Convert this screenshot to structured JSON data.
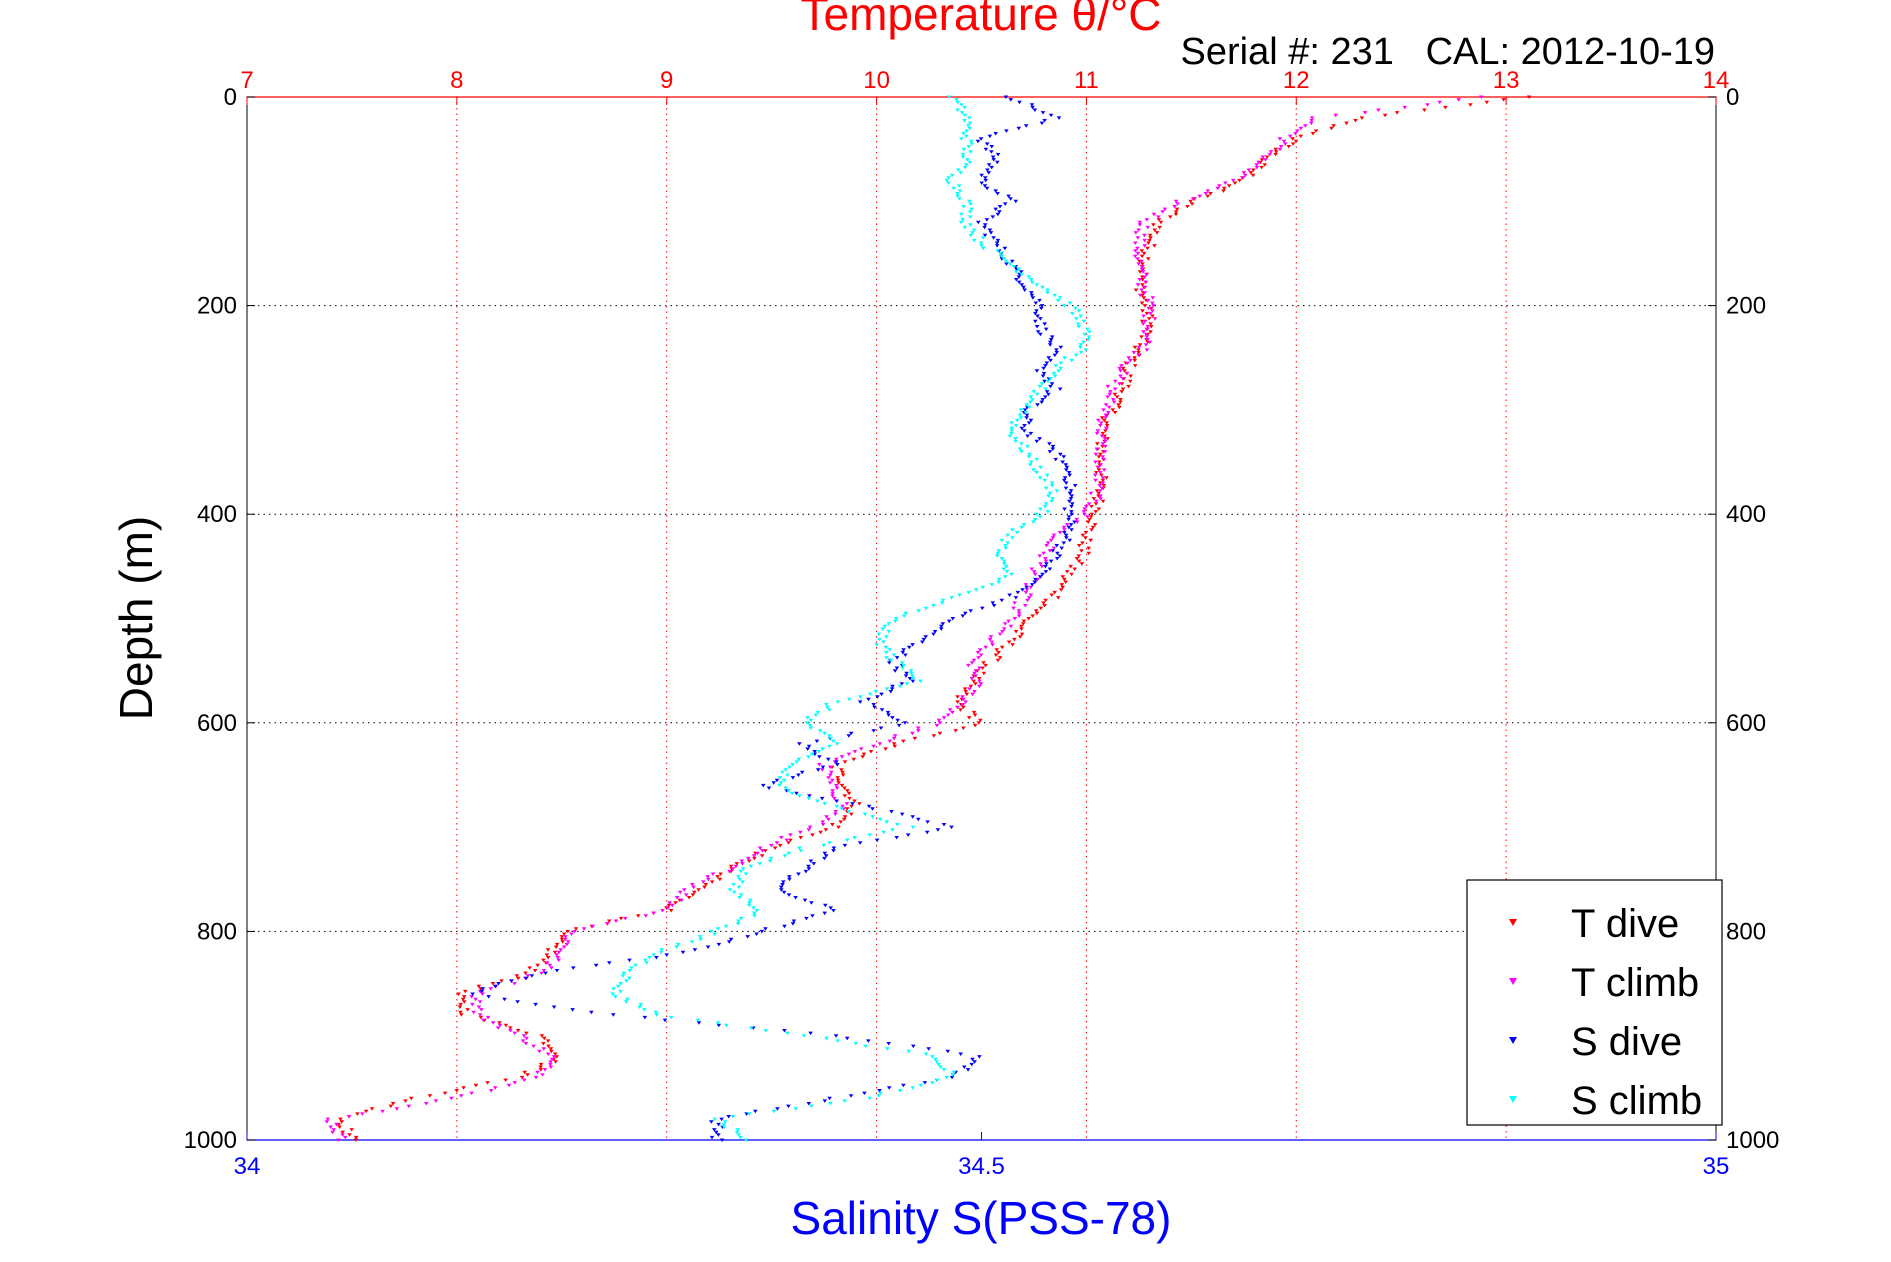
{
  "chart_data": {
    "type": "scatter",
    "title": "Temperature θ/°C",
    "subtitle": "Serial #: 231   CAL: 2012-10-19",
    "xlabel_top": "Temperature θ/°C",
    "xlabel_bottom": "Salinity S(PSS-78)",
    "ylabel": "Depth (m)",
    "temperature_axis": {
      "lim": [
        7,
        14
      ],
      "ticks": [
        "7",
        "8",
        "9",
        "10",
        "11",
        "12",
        "13",
        "14"
      ],
      "color": "#ff0000"
    },
    "salinity_axis": {
      "lim": [
        34,
        35
      ],
      "ticks": [
        "34",
        "34.5",
        "35"
      ],
      "color": "#0000ff"
    },
    "depth_axis": {
      "lim": [
        0,
        1000
      ],
      "reversed": true,
      "ticks": [
        "0",
        "200",
        "400",
        "600",
        "800",
        "1000"
      ]
    },
    "grid": true,
    "legend_position": "bottom-right",
    "series": [
      {
        "name": "T dive",
        "axis": "temperature",
        "color": "#ff0000",
        "depth": [
          0,
          20,
          40,
          60,
          80,
          100,
          120,
          140,
          160,
          180,
          200,
          220,
          240,
          260,
          280,
          300,
          320,
          340,
          360,
          380,
          400,
          420,
          440,
          460,
          480,
          500,
          520,
          540,
          560,
          580,
          600,
          620,
          640,
          660,
          680,
          700,
          720,
          740,
          760,
          780,
          800,
          820,
          840,
          860,
          880,
          900,
          920,
          940,
          960,
          980,
          1000
        ],
        "values": [
          13.1,
          12.3,
          12.0,
          11.85,
          11.75,
          11.5,
          11.35,
          11.3,
          11.28,
          11.26,
          11.28,
          11.3,
          11.25,
          11.2,
          11.18,
          11.12,
          11.08,
          11.07,
          11.07,
          11.06,
          11.05,
          11.0,
          10.98,
          10.9,
          10.85,
          10.72,
          10.65,
          10.55,
          10.45,
          10.38,
          10.5,
          10.1,
          9.8,
          9.85,
          9.9,
          9.8,
          9.5,
          9.3,
          9.15,
          9.0,
          8.5,
          8.45,
          8.35,
          8.0,
          8.05,
          8.4,
          8.5,
          8.3,
          7.8,
          7.45,
          7.5
        ]
      },
      {
        "name": "T climb",
        "axis": "temperature",
        "color": "#ff00ff",
        "depth": [
          0,
          20,
          40,
          60,
          80,
          100,
          120,
          140,
          160,
          180,
          200,
          220,
          240,
          260,
          280,
          300,
          320,
          340,
          360,
          380,
          400,
          420,
          440,
          460,
          480,
          500,
          520,
          540,
          560,
          580,
          600,
          620,
          640,
          660,
          680,
          700,
          720,
          740,
          760,
          780,
          800,
          820,
          840,
          860,
          880,
          900,
          920,
          940,
          960,
          980,
          1000
        ],
        "values": [
          12.9,
          12.1,
          11.95,
          11.85,
          11.7,
          11.45,
          11.28,
          11.25,
          11.25,
          11.27,
          11.3,
          11.3,
          11.28,
          11.18,
          11.12,
          11.1,
          11.07,
          11.07,
          11.06,
          11.05,
          11.0,
          10.85,
          10.8,
          10.75,
          10.7,
          10.65,
          10.55,
          10.45,
          10.48,
          10.42,
          10.3,
          10.0,
          9.75,
          9.78,
          9.85,
          9.7,
          9.45,
          9.3,
          9.1,
          9.0,
          8.55,
          8.5,
          8.4,
          8.1,
          8.1,
          8.3,
          8.45,
          8.4,
          8.0,
          7.4,
          7.45
        ]
      },
      {
        "name": "S dive",
        "axis": "salinity",
        "color": "#0000ff",
        "depth": [
          0,
          20,
          40,
          60,
          80,
          100,
          120,
          140,
          160,
          180,
          200,
          220,
          240,
          260,
          280,
          300,
          320,
          340,
          360,
          380,
          400,
          420,
          440,
          460,
          480,
          500,
          520,
          540,
          560,
          580,
          600,
          620,
          640,
          660,
          680,
          700,
          720,
          740,
          760,
          780,
          800,
          820,
          840,
          860,
          880,
          900,
          920,
          940,
          960,
          980,
          1000
        ],
        "values": [
          34.52,
          34.55,
          34.5,
          34.51,
          34.5,
          34.52,
          34.5,
          34.51,
          34.52,
          34.53,
          34.54,
          34.54,
          34.55,
          34.54,
          34.55,
          34.53,
          34.53,
          34.55,
          34.56,
          34.56,
          34.56,
          34.56,
          34.55,
          34.54,
          34.52,
          34.48,
          34.46,
          34.44,
          34.45,
          34.42,
          34.45,
          34.38,
          34.4,
          34.35,
          34.42,
          34.48,
          34.4,
          34.38,
          34.36,
          34.4,
          34.35,
          34.3,
          34.2,
          34.15,
          34.25,
          34.4,
          34.5,
          34.48,
          34.4,
          34.32,
          34.32
        ]
      },
      {
        "name": "S climb",
        "axis": "salinity",
        "color": "#00ffff",
        "depth": [
          0,
          20,
          40,
          60,
          80,
          100,
          120,
          140,
          160,
          180,
          200,
          220,
          240,
          260,
          280,
          300,
          320,
          340,
          360,
          380,
          400,
          420,
          440,
          460,
          480,
          500,
          520,
          540,
          560,
          580,
          600,
          620,
          640,
          660,
          680,
          700,
          720,
          740,
          760,
          780,
          800,
          820,
          840,
          860,
          880,
          900,
          920,
          940,
          960,
          980,
          1000
        ],
        "values": [
          34.48,
          34.49,
          34.49,
          34.49,
          34.48,
          34.49,
          34.49,
          34.5,
          34.52,
          34.54,
          34.56,
          34.57,
          34.57,
          34.55,
          34.54,
          34.53,
          34.52,
          34.53,
          34.54,
          34.55,
          34.54,
          34.52,
          34.51,
          34.52,
          34.48,
          34.44,
          34.43,
          34.44,
          34.46,
          34.4,
          34.38,
          34.4,
          34.37,
          34.36,
          34.4,
          34.45,
          34.38,
          34.34,
          34.33,
          34.35,
          34.32,
          34.28,
          34.26,
          34.25,
          34.28,
          34.38,
          34.47,
          34.48,
          34.42,
          34.32,
          34.34
        ]
      }
    ]
  }
}
